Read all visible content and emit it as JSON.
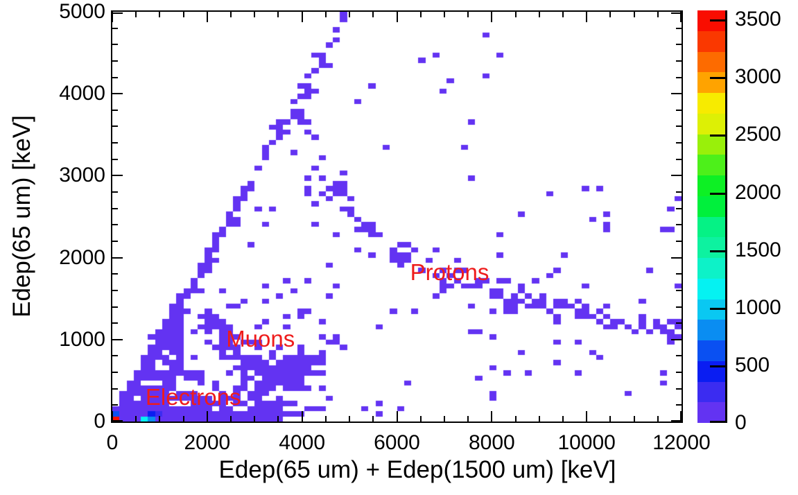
{
  "axes": {
    "x": {
      "title": "Edep(65 um) + Edep(1500 um) [keV]",
      "min": 0,
      "max": 12000,
      "major_ticks": [
        0,
        2000,
        4000,
        6000,
        8000,
        10000,
        12000
      ],
      "tick_labels": [
        "0",
        "2000",
        "4000",
        "6000",
        "8000",
        "10000",
        "12000"
      ],
      "minor_step": 500
    },
    "y": {
      "title": "Edep(65 um) [keV]",
      "min": 0,
      "max": 5000,
      "major_ticks": [
        0,
        1000,
        2000,
        3000,
        4000,
        5000
      ],
      "tick_labels": [
        "0",
        "1000",
        "2000",
        "3000",
        "4000",
        "5000"
      ],
      "minor_step": 200
    },
    "z": {
      "min": 0,
      "max": 3580,
      "tick_values": [
        0,
        500,
        1000,
        1500,
        2000,
        2500,
        3000,
        3500
      ],
      "tick_labels": [
        "0",
        "500",
        "1000",
        "1500",
        "2000",
        "2500",
        "3000",
        "3500"
      ]
    }
  },
  "palette": [
    "#6333F2",
    "#3B2CF1",
    "#0A1DF2",
    "#0A50F2",
    "#0A8DF2",
    "#0AC8F2",
    "#05F2F2",
    "#0DF2C8",
    "#0DF2A0",
    "#05F285",
    "#00F03C",
    "#0DF024",
    "#4DF01A",
    "#99F00A",
    "#DDF005",
    "#F7EB00",
    "#FFA300",
    "#FD6B00",
    "#FA3800",
    "#F90D00"
  ],
  "annotation_color": "#EE1C1C",
  "annotations": [
    {
      "id": "protons",
      "label": "Protons",
      "x_kev": 6280,
      "y_kev": 1980
    },
    {
      "id": "muons",
      "label": "Muons",
      "x_kev": 2400,
      "y_kev": 1170
    },
    {
      "id": "electrons",
      "label": "Electrons",
      "x_kev": 700,
      "y_kev": 460
    }
  ],
  "chart_data": {
    "type": "heatmap",
    "title": "",
    "xlabel": "Edep(65 um) + Edep(1500 um) [keV]",
    "ylabel": "Edep(65 um) [keV]",
    "xlim": [
      0,
      12000
    ],
    "ylim": [
      0,
      5000
    ],
    "zlim": [
      0,
      3580
    ],
    "x_bins": 80,
    "y_bins": 80,
    "x_bin_width_kev": 150,
    "y_bin_width_kev": 62.5,
    "legend": "color scale 0-3500 counts, 20 discrete rainbow levels",
    "grid": false,
    "hot_cells": [
      {
        "ix": 0,
        "iy": 0,
        "z": 3560
      },
      {
        "ix": 0,
        "iy": 1,
        "z": 700
      },
      {
        "ix": 4,
        "iy": 0,
        "z": 1150
      },
      {
        "ix": 5,
        "iy": 0,
        "z": 800
      },
      {
        "ix": 5,
        "iy": 1,
        "z": 450
      },
      {
        "ix": 6,
        "iy": 1,
        "z": 300
      }
    ],
    "structure": {
      "seed": 1337,
      "comment": "single-count (violet) occupancy pattern of the 2D histogram",
      "electron_cluster": {
        "x_range_kev": [
          0,
          3450
        ],
        "y_range_kev": [
          0,
          500
        ],
        "solid_rows": 2,
        "row_fill_prob": [
          0.92,
          0.8,
          0.6,
          0.4,
          0.25,
          0.15
        ],
        "diag_triangle_width_kev": 800,
        "diag_triangle_prob": 0.8,
        "halo_n": 50
      },
      "diagonal_band": {
        "line": "y = x",
        "from_kev": [
          0,
          0
        ],
        "to_kev": [
          5000,
          5000
        ],
        "skip_prob_upper": 0.15,
        "second_cell_prob": 0.38,
        "wide_below_iy": 22
      },
      "muon_band": {
        "points_kev": [
          [
            2050,
            1350
          ],
          [
            2350,
            1080
          ],
          [
            2650,
            880
          ],
          [
            2950,
            720
          ],
          [
            3250,
            615
          ],
          [
            3550,
            575
          ],
          [
            3850,
            615
          ],
          [
            4100,
            720
          ],
          [
            4320,
            860
          ]
        ],
        "samples": 80,
        "x_jitter_kev": 180,
        "y_jitter_kev": 120,
        "clump": {
          "x_range_kev": [
            2800,
            4350
          ],
          "y_range_kev": [
            420,
            720
          ],
          "prob": 0.5
        },
        "halo_n": 25,
        "halo_x_kev": [
          1900,
          4700
        ],
        "halo_y_kev": [
          300,
          1500
        ]
      },
      "proton_band": {
        "points_kev": [
          [
            3900,
            3900
          ],
          [
            4150,
            3400
          ],
          [
            4400,
            3050
          ],
          [
            4700,
            2800
          ],
          [
            5000,
            2600
          ],
          [
            5400,
            2370
          ],
          [
            5800,
            2170
          ],
          [
            6300,
            1990
          ],
          [
            6900,
            1840
          ],
          [
            7600,
            1700
          ],
          [
            8300,
            1560
          ],
          [
            9100,
            1430
          ],
          [
            9900,
            1330
          ],
          [
            10800,
            1230
          ],
          [
            11950,
            1120
          ]
        ],
        "core_prob": 0.9,
        "second_prob": 0.5,
        "third_prob": 0.3,
        "dense_extra_below_kev": 6200,
        "halo_prob": 0.35
      },
      "scatter_regions": [
        {
          "n": 70,
          "x_kev": [
            600,
            5200
          ],
          "y_kev": [
            150,
            3300
          ]
        },
        {
          "n": 55,
          "x_kev": [
            5200,
            12000
          ],
          "y_kev": [
            150,
            3000
          ]
        },
        {
          "n": 12,
          "x_kev": [
            4800,
            8200
          ],
          "y_kev": [
            3300,
            4800
          ]
        },
        {
          "n": 10,
          "x_kev": [
            8200,
            12000
          ],
          "y_kev": [
            1600,
            3000
          ]
        },
        {
          "n": 12,
          "x_kev": [
            3500,
            5600
          ],
          "y_kev": [
            60,
            220
          ]
        },
        {
          "n": 14,
          "x_kev": [
            900,
            2500
          ],
          "y_kev": [
            500,
            1600
          ]
        }
      ]
    }
  }
}
